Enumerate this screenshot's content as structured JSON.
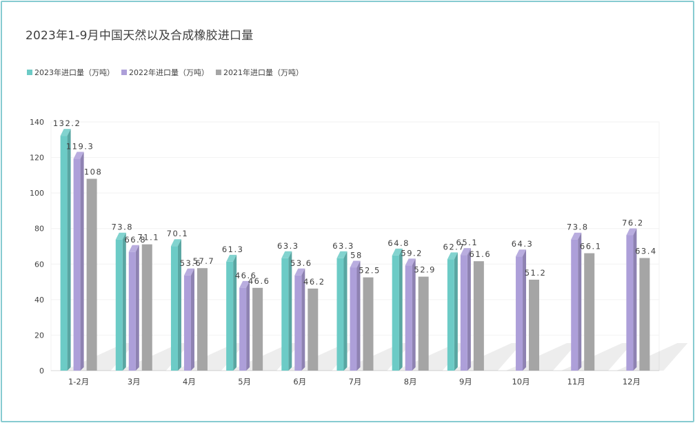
{
  "chart_data": {
    "type": "bar",
    "title": "2023年1-9月中国天然以及合成橡胶进口量",
    "categories": [
      "1-2月",
      "3月",
      "4月",
      "5月",
      "6月",
      "7月",
      "8月",
      "9月",
      "10月",
      "11月",
      "12月"
    ],
    "series": [
      {
        "name": "2023年进口量（万吨）",
        "color": "#6ccbc6",
        "values": [
          132.2,
          73.8,
          70.1,
          61.3,
          63.3,
          63.3,
          64.8,
          62.7,
          null,
          null,
          null
        ]
      },
      {
        "name": "2022年进口量（万吨）",
        "color": "#ad9fd9",
        "values": [
          119.3,
          66.8,
          53.6,
          46.6,
          53.6,
          58,
          59.2,
          65.1,
          64.3,
          73.8,
          76.2
        ]
      },
      {
        "name": "2021年进口量（万吨）",
        "color": "#a5a5a5",
        "values": [
          108,
          71.1,
          57.7,
          46.6,
          46.2,
          52.5,
          52.9,
          61.6,
          51.2,
          66.1,
          63.4
        ]
      }
    ],
    "ylim": [
      0,
      140
    ],
    "yticks": [
      0,
      20,
      40,
      60,
      80,
      100,
      120,
      140
    ],
    "legend_position": "top-left",
    "grid": true
  }
}
